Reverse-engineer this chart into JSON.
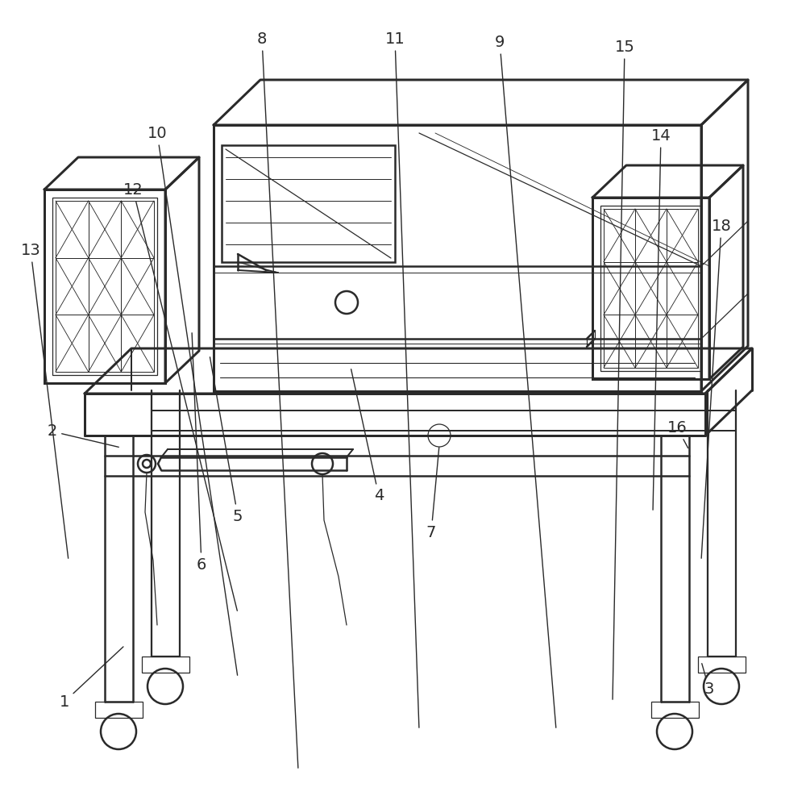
{
  "bg_color": "#ffffff",
  "lc": "#2a2a2a",
  "lw_main": 1.8,
  "lw_thin": 0.9,
  "fig_w": 10.0,
  "fig_h": 9.82,
  "dpi": 100,
  "annotations": [
    [
      "1",
      80,
      870,
      155,
      800
    ],
    [
      "2",
      65,
      535,
      150,
      555
    ],
    [
      "3",
      880,
      855,
      870,
      820
    ],
    [
      "4",
      470,
      615,
      435,
      455
    ],
    [
      "5",
      295,
      640,
      260,
      440
    ],
    [
      "6",
      250,
      700,
      238,
      410
    ],
    [
      "7",
      535,
      660,
      545,
      552
    ],
    [
      "8",
      325,
      48,
      370,
      955
    ],
    [
      "9",
      620,
      52,
      690,
      905
    ],
    [
      "10",
      195,
      165,
      295,
      840
    ],
    [
      "11",
      490,
      48,
      520,
      905
    ],
    [
      "12",
      165,
      235,
      295,
      760
    ],
    [
      "13",
      38,
      310,
      85,
      695
    ],
    [
      "14",
      820,
      168,
      810,
      635
    ],
    [
      "15",
      775,
      58,
      760,
      870
    ],
    [
      "16",
      840,
      530,
      855,
      558
    ],
    [
      "18",
      895,
      280,
      870,
      695
    ]
  ]
}
